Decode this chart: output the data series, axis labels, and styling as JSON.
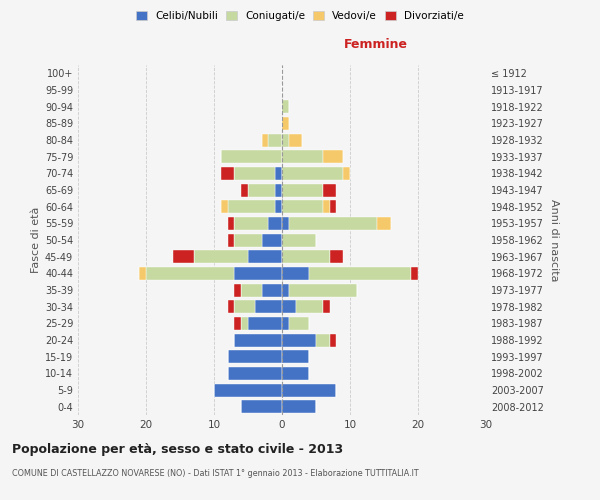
{
  "age_groups": [
    "0-4",
    "5-9",
    "10-14",
    "15-19",
    "20-24",
    "25-29",
    "30-34",
    "35-39",
    "40-44",
    "45-49",
    "50-54",
    "55-59",
    "60-64",
    "65-69",
    "70-74",
    "75-79",
    "80-84",
    "85-89",
    "90-94",
    "95-99",
    "100+"
  ],
  "birth_years": [
    "2008-2012",
    "2003-2007",
    "1998-2002",
    "1993-1997",
    "1988-1992",
    "1983-1987",
    "1978-1982",
    "1973-1977",
    "1968-1972",
    "1963-1967",
    "1958-1962",
    "1953-1957",
    "1948-1952",
    "1943-1947",
    "1938-1942",
    "1933-1937",
    "1928-1932",
    "1923-1927",
    "1918-1922",
    "1913-1917",
    "≤ 1912"
  ],
  "male": {
    "celibi": [
      6,
      10,
      8,
      8,
      7,
      5,
      4,
      3,
      7,
      5,
      3,
      2,
      1,
      1,
      1,
      0,
      0,
      0,
      0,
      0,
      0
    ],
    "coniugati": [
      0,
      0,
      0,
      0,
      0,
      1,
      3,
      3,
      13,
      8,
      4,
      5,
      7,
      4,
      6,
      9,
      2,
      0,
      0,
      0,
      0
    ],
    "vedovi": [
      0,
      0,
      0,
      0,
      0,
      0,
      0,
      0,
      1,
      0,
      0,
      0,
      1,
      0,
      0,
      0,
      1,
      0,
      0,
      0,
      0
    ],
    "divorziati": [
      0,
      0,
      0,
      0,
      0,
      1,
      1,
      1,
      0,
      3,
      1,
      1,
      0,
      1,
      2,
      0,
      0,
      0,
      0,
      0,
      0
    ]
  },
  "female": {
    "nubili": [
      5,
      8,
      4,
      4,
      5,
      1,
      2,
      1,
      4,
      0,
      0,
      1,
      0,
      0,
      0,
      0,
      0,
      0,
      0,
      0,
      0
    ],
    "coniugate": [
      0,
      0,
      0,
      0,
      2,
      3,
      4,
      10,
      15,
      7,
      5,
      13,
      6,
      6,
      9,
      6,
      1,
      0,
      1,
      0,
      0
    ],
    "vedove": [
      0,
      0,
      0,
      0,
      0,
      0,
      0,
      0,
      0,
      0,
      0,
      2,
      1,
      0,
      1,
      3,
      2,
      1,
      0,
      0,
      0
    ],
    "divorziate": [
      0,
      0,
      0,
      0,
      1,
      0,
      1,
      0,
      1,
      2,
      0,
      0,
      1,
      2,
      0,
      0,
      0,
      0,
      0,
      0,
      0
    ]
  },
  "colors": {
    "celibi": "#4472c4",
    "coniugati": "#c5d9a0",
    "vedovi": "#f5c96a",
    "divorziati": "#cc2222"
  },
  "xlim": 30,
  "title": "Popolazione per età, sesso e stato civile - 2013",
  "subtitle": "COMUNE DI CASTELLAZZO NOVARESE (NO) - Dati ISTAT 1° gennaio 2013 - Elaborazione TUTTITALIA.IT",
  "ylabel_left": "Fasce di età",
  "ylabel_right": "Anni di nascita",
  "xlabel_right": "Femmine",
  "bg_color": "#f5f5f5",
  "grid_color": "#cccccc"
}
